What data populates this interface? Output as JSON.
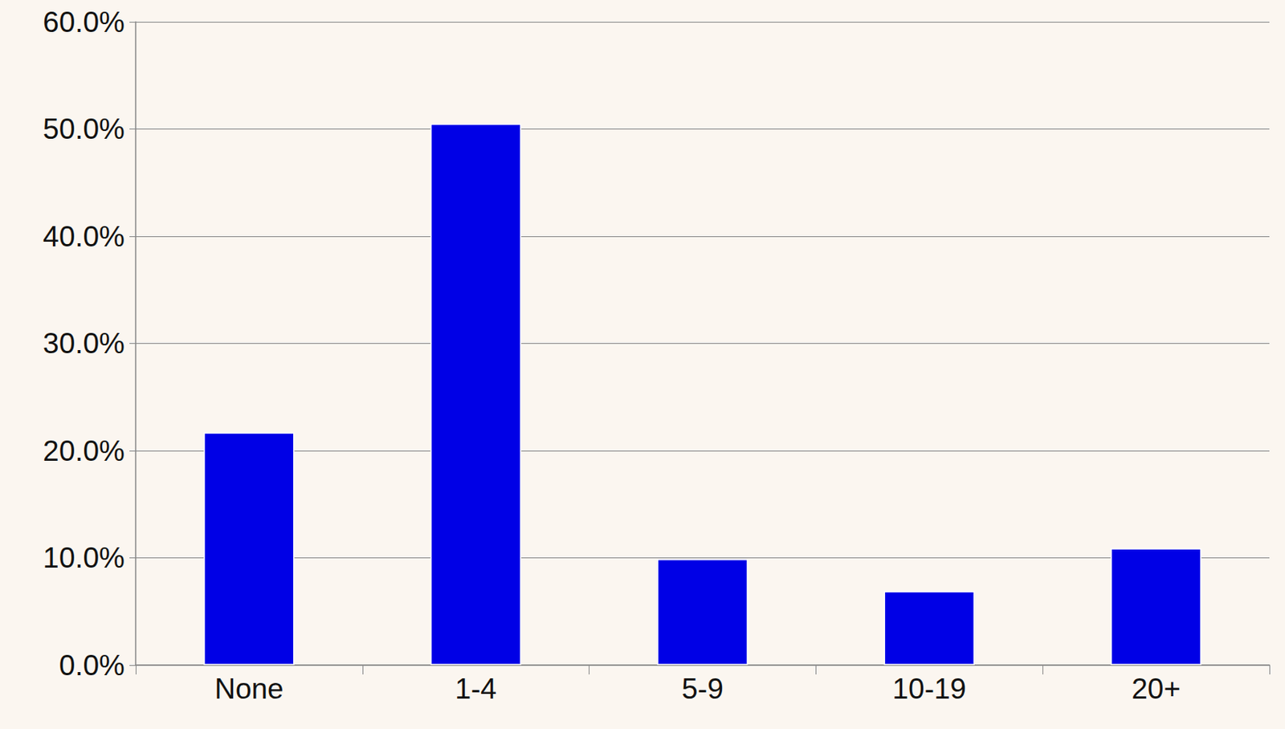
{
  "chart_data": {
    "type": "bar",
    "categories": [
      "None",
      "1-4",
      "5-9",
      "10-19",
      "20+"
    ],
    "values": [
      21.7,
      50.5,
      9.9,
      6.9,
      10.9
    ],
    "color": "#0000e6",
    "ylim": [
      0,
      60
    ],
    "yticks": [
      {
        "value": 0,
        "label": "0.0%"
      },
      {
        "value": 10,
        "label": "10.0%"
      },
      {
        "value": 20,
        "label": "20.0%"
      },
      {
        "value": 30,
        "label": "30.0%"
      },
      {
        "value": 40,
        "label": "40.0%"
      },
      {
        "value": 50,
        "label": "50.0%"
      },
      {
        "value": 60,
        "label": "60.0%"
      }
    ],
    "grid": true
  }
}
